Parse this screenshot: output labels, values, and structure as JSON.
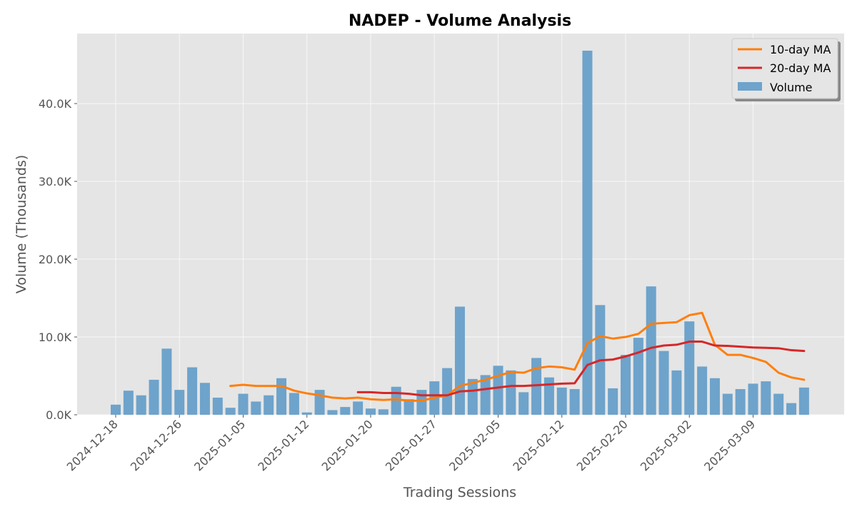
{
  "chart_data": {
    "type": "bar",
    "title": "NADEP - Volume Analysis",
    "xlabel": "Trading Sessions",
    "ylabel": "Volume (Thousands)",
    "ylim": [
      0,
      49000
    ],
    "y_ticks": [
      0,
      10000,
      20000,
      30000,
      40000
    ],
    "y_tick_labels": [
      "0.0K",
      "10.0K",
      "20.0K",
      "30.0K",
      "40.0K"
    ],
    "x_tick_labels": [
      "2024-12-18",
      "2024-12-26",
      "2025-01-05",
      "2025-01-12",
      "2025-01-20",
      "2025-01-27",
      "2025-02-05",
      "2025-02-12",
      "2025-02-20",
      "2025-03-02",
      "2025-03-09"
    ],
    "x_tick_indices": [
      0,
      5,
      10,
      15,
      20,
      25,
      30,
      35,
      40,
      45,
      50
    ],
    "grid": true,
    "legend_position": "top-right",
    "legend": [
      "10-day MA",
      "20-day MA",
      "Volume"
    ],
    "colors": {
      "volume": "#6ea3cb",
      "ma10": "#ff7f0e",
      "ma20": "#d62728",
      "plot_bg": "#e5e5e5"
    },
    "volume": [
      1300,
      3100,
      2500,
      4500,
      8500,
      3200,
      6100,
      4100,
      2200,
      900,
      2700,
      1700,
      2500,
      4700,
      2800,
      300,
      3200,
      600,
      1000,
      1700,
      800,
      700,
      3600,
      2000,
      3200,
      4300,
      6000,
      13900,
      4600,
      5100,
      6300,
      5700,
      2900,
      7300,
      4800,
      3500,
      3300,
      46800,
      14100,
      3400,
      7700,
      9900,
      16500,
      8200,
      5700,
      12000,
      6200,
      4700,
      2700,
      3300,
      4000,
      4300,
      2700,
      1500,
      3500
    ],
    "series": [
      {
        "name": "10-day MA",
        "values": [
          null,
          null,
          null,
          null,
          null,
          null,
          null,
          null,
          null,
          3700,
          3850,
          3700,
          3700,
          3700,
          3100,
          2750,
          2500,
          2200,
          2100,
          2200,
          2000,
          1900,
          2000,
          1800,
          1800,
          2200,
          2500,
          3700,
          4100,
          4500,
          5000,
          5500,
          5400,
          6000,
          6200,
          6100,
          5800,
          9200,
          10100,
          9800,
          10000,
          10400,
          11700,
          11800,
          11900,
          12800,
          13100,
          9000,
          7700,
          7700,
          7300,
          6800,
          5400,
          4800,
          4500
        ]
      },
      {
        "name": "20-day MA",
        "values": [
          null,
          null,
          null,
          null,
          null,
          null,
          null,
          null,
          null,
          null,
          null,
          null,
          null,
          null,
          null,
          null,
          null,
          null,
          null,
          2900,
          2900,
          2800,
          2800,
          2700,
          2500,
          2500,
          2500,
          3000,
          3100,
          3300,
          3500,
          3700,
          3700,
          3800,
          3900,
          4000,
          4050,
          6400,
          7000,
          7100,
          7500,
          8000,
          8600,
          8900,
          9000,
          9400,
          9400,
          8900,
          8850,
          8750,
          8650,
          8600,
          8550,
          8300,
          8200
        ]
      }
    ]
  }
}
